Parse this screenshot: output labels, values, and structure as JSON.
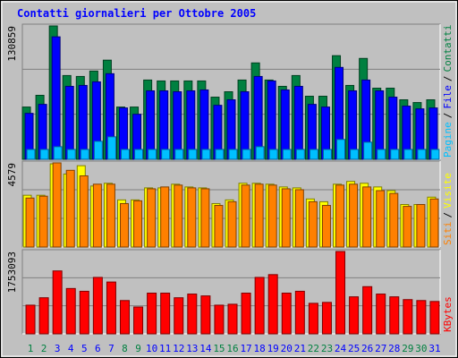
{
  "chart_data": [
    {
      "type": "bar",
      "title": "Contatti giornalieri per Ottobre 2005",
      "legend_separator": "/",
      "ylim": [
        0,
        130859
      ],
      "yticks": [
        130859
      ],
      "grid": true,
      "series": [
        {
          "name": "Contatti",
          "color": "#008040",
          "values": [
            51300,
            62800,
            130859,
            82200,
            81300,
            86600,
            97300,
            51300,
            51300,
            77800,
            76900,
            76900,
            76900,
            76900,
            61000,
            66300,
            77800,
            94600,
            77800,
            71600,
            82200,
            61900,
            61900,
            101700,
            72500,
            99000,
            69800,
            69800,
            58400,
            55700,
            58400
          ]
        },
        {
          "name": "File",
          "color": "#0000ff",
          "values": [
            45100,
            53900,
            120200,
            71600,
            72500,
            76000,
            84000,
            50400,
            44200,
            67200,
            67200,
            66300,
            67200,
            68100,
            53000,
            58400,
            66300,
            81300,
            76900,
            68100,
            71600,
            53900,
            51300,
            90200,
            67200,
            77800,
            67200,
            61000,
            52200,
            49500,
            50400
          ]
        },
        {
          "name": "Pagine",
          "color": "#00c0ff",
          "values": [
            9700,
            9700,
            12400,
            9700,
            9700,
            17700,
            22100,
            9700,
            9700,
            9700,
            9700,
            9700,
            9700,
            9700,
            9700,
            9700,
            9700,
            12400,
            9700,
            9700,
            9700,
            9700,
            9700,
            19500,
            9700,
            16800,
            9700,
            9700,
            9700,
            9700,
            9700
          ]
        }
      ]
    },
    {
      "type": "bar",
      "legend_separator": "/",
      "ylim": [
        0,
        4579
      ],
      "yticks": [
        4579
      ],
      "grid": true,
      "series": [
        {
          "name": "Visite",
          "color": "#ffff00",
          "values": [
            2817,
            2817,
            4527,
            3974,
            4426,
            3320,
            3471,
            2565,
            2565,
            3219,
            3219,
            3420,
            3270,
            3219,
            2364,
            2565,
            3471,
            3471,
            3420,
            3270,
            3219,
            2616,
            2465,
            3420,
            3571,
            3471,
            3270,
            3068,
            2314,
            2314,
            2716
          ]
        },
        {
          "name": "Siti",
          "color": "#ff8000",
          "values": [
            2666,
            2767,
            4579,
            4175,
            3873,
            3420,
            3420,
            2364,
            2515,
            3169,
            3270,
            3370,
            3219,
            3169,
            2264,
            2465,
            3370,
            3420,
            3370,
            3169,
            3119,
            2465,
            2264,
            3370,
            3420,
            3270,
            3068,
            2917,
            2213,
            2314,
            2616
          ]
        }
      ]
    },
    {
      "type": "bar",
      "categories": [
        "1",
        "2",
        "3",
        "4",
        "5",
        "6",
        "7",
        "8",
        "9",
        "10",
        "11",
        "12",
        "13",
        "14",
        "15",
        "16",
        "17",
        "18",
        "19",
        "20",
        "21",
        "22",
        "23",
        "24",
        "25",
        "26",
        "27",
        "28",
        "29",
        "30",
        "31"
      ],
      "x_label_colors": [
        "#008040",
        "#008040",
        "#0000ff",
        "#0000ff",
        "#0000ff",
        "#0000ff",
        "#0000ff",
        "#008040",
        "#008040",
        "#0000ff",
        "#0000ff",
        "#0000ff",
        "#0000ff",
        "#0000ff",
        "#008040",
        "#008040",
        "#0000ff",
        "#0000ff",
        "#0000ff",
        "#0000ff",
        "#0000ff",
        "#008040",
        "#008040",
        "#0000ff",
        "#0000ff",
        "#0000ff",
        "#0000ff",
        "#0000ff",
        "#008040",
        "#008040",
        "#0000ff"
      ],
      "ylim": [
        0,
        1753093
      ],
      "yticks": [
        1753093
      ],
      "grid": true,
      "series": [
        {
          "name": "KBytes",
          "color": "#ff0000",
          "values": [
            610700,
            768300,
            1339600,
            965300,
            906200,
            1201700,
            1103200,
            709200,
            571300,
            866800,
            866800,
            768300,
            847100,
            807700,
            610700,
            630400,
            866800,
            1201700,
            1260800,
            866800,
            906200,
            650100,
            669800,
            1753093,
            788000,
            1004700,
            847100,
            788000,
            728900,
            709200,
            689500
          ]
        }
      ]
    }
  ]
}
